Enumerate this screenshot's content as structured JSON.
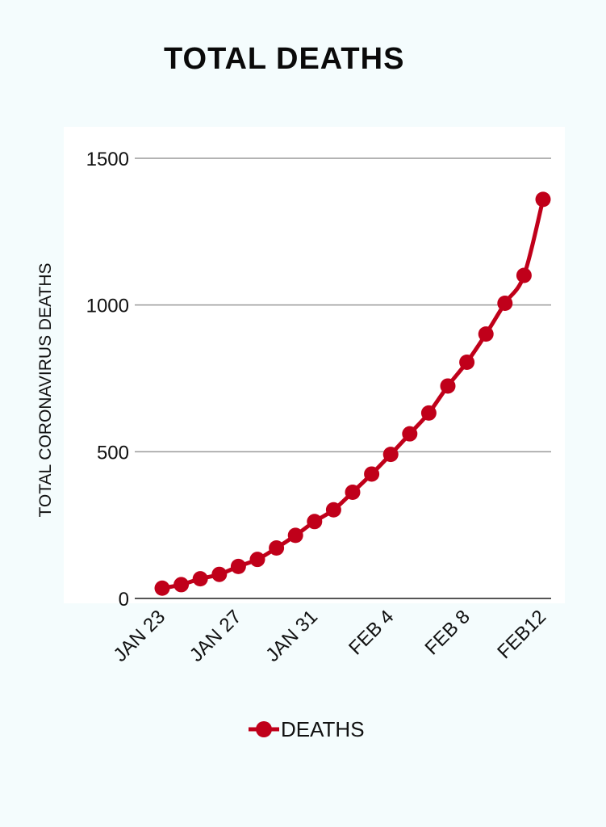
{
  "chart_data": {
    "type": "line",
    "title": "TOTAL DEATHS",
    "ylabel": "TOTAL CORONAVIRUS DEATHS",
    "xlabel": "",
    "ylim": [
      0,
      1500
    ],
    "yticks": [
      0,
      500,
      1000,
      1500
    ],
    "xtick_labels": [
      "JAN 23",
      "JAN 27",
      "JAN 31",
      "FEB 4",
      "FEB 8",
      "FEB12"
    ],
    "grid": true,
    "legend_position": "bottom",
    "series": [
      {
        "name": "DEATHS",
        "color": "#c0001a",
        "values": [
          35,
          47,
          67,
          82,
          109,
          133,
          172,
          215,
          262,
          302,
          362,
          424,
          491,
          561,
          632,
          724,
          805,
          901,
          1006,
          1101,
          1360
        ]
      }
    ]
  }
}
